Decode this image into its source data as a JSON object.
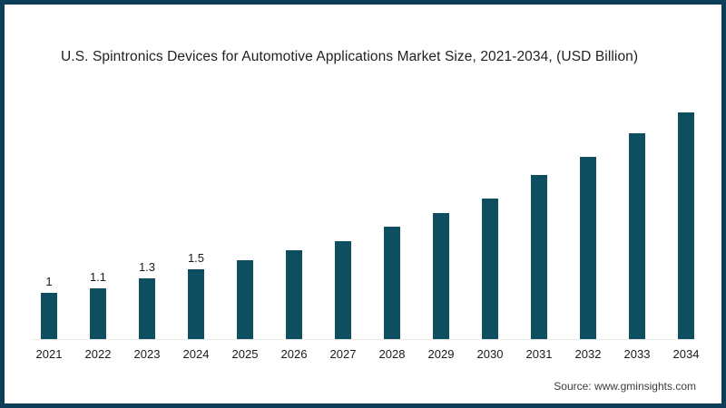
{
  "frame": {
    "border_color": "#0e3e57",
    "background_color": "#ffffff"
  },
  "header": {
    "title": "U.S. Spintronics Devices for Automotive Applications Market Size, 2021-2034, (USD Billion)"
  },
  "footer": {
    "source": "Source: www.gminsights.com"
  },
  "chart_data": {
    "type": "bar",
    "title": "U.S. Spintronics Devices for Automotive Applications Market Size, 2021-2034, (USD Billion)",
    "categories": [
      "2021",
      "2022",
      "2023",
      "2024",
      "2025",
      "2026",
      "2027",
      "2028",
      "2029",
      "2030",
      "2031",
      "2032",
      "2033",
      "2034"
    ],
    "values": [
      1,
      1.1,
      1.3,
      1.5,
      1.7,
      1.9,
      2.1,
      2.4,
      2.7,
      3.0,
      3.5,
      3.9,
      4.4,
      5.0
    ],
    "bar_labels": [
      "1",
      "1.1",
      "1.3",
      "1.5",
      "",
      "",
      "",
      "",
      "",
      "",
      "",
      "",
      "",
      ""
    ],
    "xlabel": "",
    "ylabel": "",
    "ylim": [
      0,
      5.2
    ],
    "grid": false,
    "legend_position": "none",
    "y_axis_visible": false,
    "bar_color": "#0d4e60",
    "baseline_color": "#e7e7e7",
    "label_color": "#1a1a1a"
  }
}
